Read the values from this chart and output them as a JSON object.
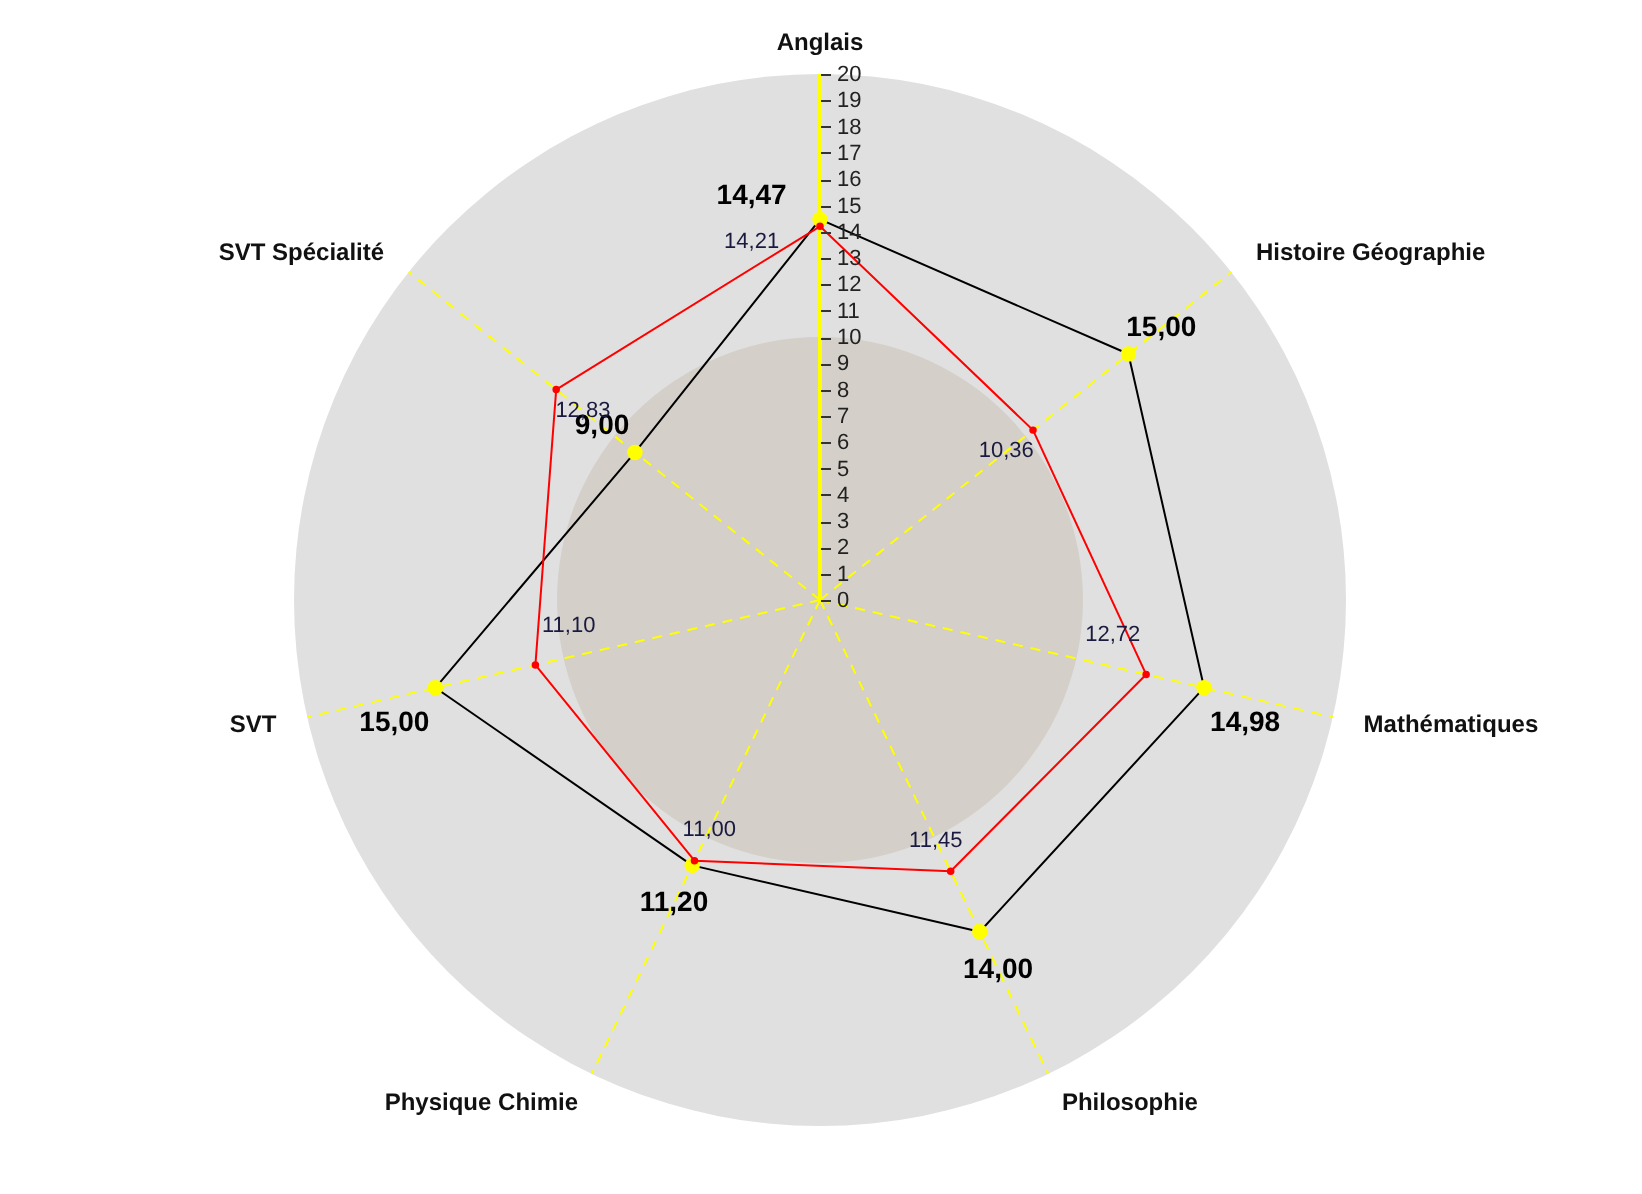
{
  "chart_data": {
    "type": "radar",
    "categories": [
      "Anglais",
      "Histoire Géographie",
      "Mathématiques",
      "Philosophie",
      "Physique Chimie",
      "SVT",
      "SVT Spécialité"
    ],
    "ylim": [
      0,
      20
    ],
    "yticks": [
      0,
      1,
      2,
      3,
      4,
      5,
      6,
      7,
      8,
      9,
      10,
      11,
      12,
      13,
      14,
      15,
      16,
      17,
      18,
      19,
      20
    ],
    "marker": "circle",
    "series": [
      {
        "color": "#000000",
        "values": [
          14.47,
          15.0,
          14.98,
          14.0,
          11.2,
          15.0,
          9.0
        ],
        "value_labels": [
          "14,47",
          "15,00",
          "14,98",
          "14,00",
          "11,20",
          "15,00",
          "9,00"
        ]
      },
      {
        "color": "#ff0000",
        "values": [
          14.21,
          10.36,
          12.72,
          11.45,
          11.0,
          11.1,
          12.83
        ],
        "value_labels": [
          "14,21",
          "10,36",
          "12,72",
          "11,45",
          "11,00",
          "11,10",
          "12,83"
        ]
      }
    ]
  }
}
